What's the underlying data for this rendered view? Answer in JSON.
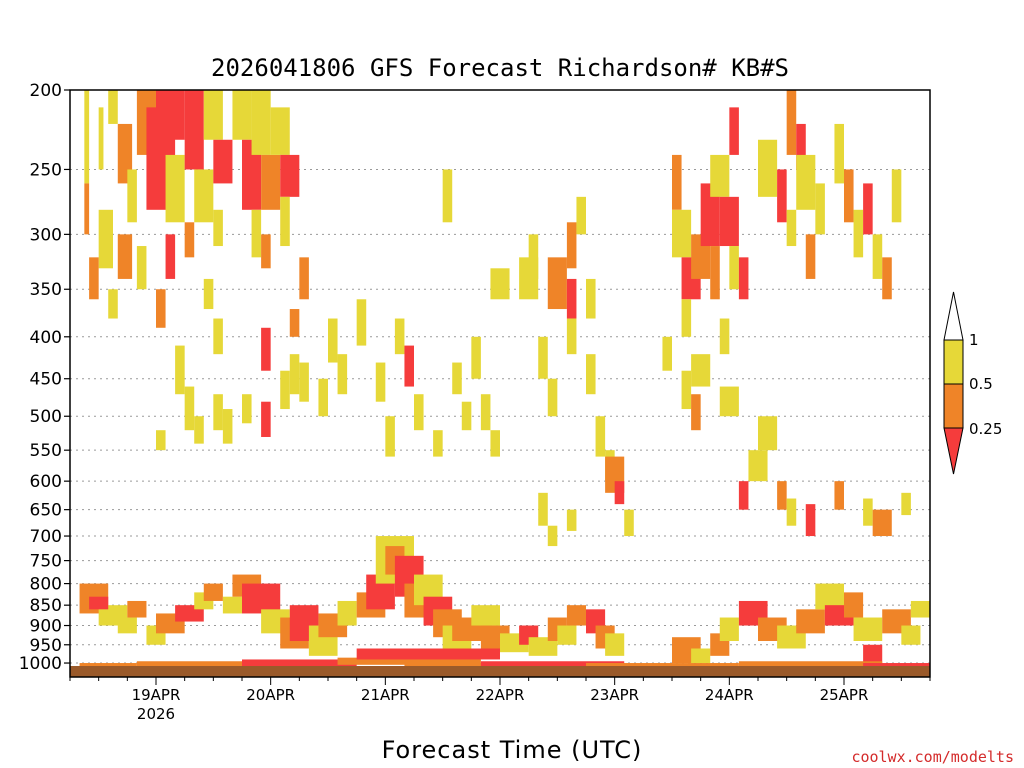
{
  "chart_data": {
    "type": "heatmap",
    "title": "2026041806 GFS Forecast Richardson# KB#S",
    "xlabel": "Forecast Time (UTC)",
    "credit": "coolwx.com/modelts",
    "y_axis": {
      "label": "",
      "scale": "log-pressure",
      "inverted": true,
      "range_hPa": [
        200,
        1040
      ],
      "ticks": [
        "200",
        "250",
        "300",
        "350",
        "400",
        "450",
        "500",
        "550",
        "600",
        "650",
        "700",
        "750",
        "800",
        "850",
        "900",
        "950",
        "1000"
      ],
      "grid": "dotted"
    },
    "x_axis": {
      "range_hours": [
        0,
        180
      ],
      "tick_labels": [
        {
          "hour": 18,
          "label": "19APR",
          "sublabel": "2026"
        },
        {
          "hour": 42,
          "label": "20APR",
          "sublabel": ""
        },
        {
          "hour": 66,
          "label": "21APR",
          "sublabel": ""
        },
        {
          "hour": 90,
          "label": "22APR",
          "sublabel": ""
        },
        {
          "hour": 114,
          "label": "23APR",
          "sublabel": ""
        },
        {
          "hour": 138,
          "label": "24APR",
          "sublabel": ""
        },
        {
          "hour": 162,
          "label": "25APR",
          "sublabel": ""
        }
      ]
    },
    "legend": {
      "placement": "right",
      "labels": [
        "1",
        "0.5",
        "0.25"
      ],
      "bins": [
        {
          "range": "0.5-1",
          "color": "#e6d838"
        },
        {
          "range": "0.25-0.5",
          "color": "#ef8428"
        },
        {
          "range": "<0.25",
          "color": "#f53c3c"
        }
      ],
      "above_color": "#ffffff"
    },
    "colors": {
      "lt025": "#f53c3c",
      "c025_05": "#ef8428",
      "c05_1": "#e6d838",
      "ground": "#9a5a2a"
    },
    "cells": [
      [
        3,
        4,
        200,
        260,
        "y"
      ],
      [
        3,
        4,
        260,
        300,
        "o"
      ],
      [
        6,
        7,
        210,
        250,
        "y"
      ],
      [
        8,
        10,
        200,
        220,
        "y"
      ],
      [
        10,
        13,
        220,
        260,
        "o"
      ],
      [
        12,
        14,
        250,
        290,
        "y"
      ],
      [
        14,
        18,
        200,
        240,
        "o"
      ],
      [
        16,
        22,
        210,
        280,
        "r"
      ],
      [
        18,
        24,
        200,
        230,
        "r"
      ],
      [
        20,
        24,
        240,
        290,
        "y"
      ],
      [
        24,
        28,
        200,
        250,
        "r"
      ],
      [
        26,
        30,
        250,
        290,
        "y"
      ],
      [
        28,
        32,
        200,
        230,
        "y"
      ],
      [
        30,
        34,
        230,
        260,
        "r"
      ],
      [
        34,
        38,
        200,
        230,
        "y"
      ],
      [
        36,
        40,
        230,
        280,
        "r"
      ],
      [
        38,
        42,
        200,
        240,
        "y"
      ],
      [
        40,
        44,
        240,
        280,
        "o"
      ],
      [
        42,
        46,
        210,
        240,
        "y"
      ],
      [
        44,
        48,
        240,
        270,
        "r"
      ],
      [
        44,
        46,
        270,
        310,
        "y"
      ],
      [
        6,
        9,
        280,
        330,
        "y"
      ],
      [
        10,
        13,
        300,
        340,
        "o"
      ],
      [
        14,
        16,
        310,
        350,
        "y"
      ],
      [
        20,
        22,
        300,
        340,
        "r"
      ],
      [
        24,
        26,
        290,
        320,
        "o"
      ],
      [
        30,
        32,
        280,
        310,
        "y"
      ],
      [
        38,
        40,
        280,
        320,
        "y"
      ],
      [
        40,
        42,
        300,
        330,
        "o"
      ],
      [
        4,
        6,
        320,
        360,
        "o"
      ],
      [
        8,
        10,
        350,
        380,
        "y"
      ],
      [
        18,
        20,
        350,
        390,
        "o"
      ],
      [
        28,
        30,
        340,
        370,
        "y"
      ],
      [
        30,
        32,
        380,
        420,
        "y"
      ],
      [
        40,
        42,
        390,
        440,
        "r"
      ],
      [
        46,
        48,
        370,
        400,
        "o"
      ],
      [
        48,
        50,
        320,
        360,
        "o"
      ],
      [
        54,
        56,
        380,
        430,
        "y"
      ],
      [
        56,
        58,
        420,
        470,
        "y"
      ],
      [
        46,
        48,
        420,
        470,
        "y"
      ],
      [
        22,
        24,
        410,
        470,
        "y"
      ],
      [
        24,
        26,
        460,
        520,
        "y"
      ],
      [
        30,
        32,
        470,
        520,
        "y"
      ],
      [
        32,
        34,
        490,
        540,
        "y"
      ],
      [
        36,
        38,
        470,
        510,
        "y"
      ],
      [
        40,
        42,
        480,
        530,
        "r"
      ],
      [
        44,
        46,
        440,
        490,
        "y"
      ],
      [
        48,
        50,
        430,
        480,
        "y"
      ],
      [
        52,
        54,
        450,
        500,
        "y"
      ],
      [
        18,
        20,
        520,
        550,
        "y"
      ],
      [
        26,
        28,
        500,
        540,
        "y"
      ],
      [
        60,
        62,
        360,
        410,
        "y"
      ],
      [
        64,
        66,
        430,
        480,
        "y"
      ],
      [
        66,
        68,
        500,
        560,
        "y"
      ],
      [
        68,
        70,
        380,
        420,
        "y"
      ],
      [
        70,
        72,
        410,
        460,
        "r"
      ],
      [
        72,
        74,
        470,
        520,
        "y"
      ],
      [
        76,
        78,
        520,
        560,
        "y"
      ],
      [
        80,
        82,
        430,
        470,
        "y"
      ],
      [
        82,
        84,
        480,
        520,
        "y"
      ],
      [
        84,
        86,
        400,
        450,
        "y"
      ],
      [
        86,
        88,
        470,
        520,
        "y"
      ],
      [
        88,
        90,
        520,
        560,
        "y"
      ],
      [
        88,
        92,
        330,
        360,
        "y"
      ],
      [
        94,
        98,
        320,
        360,
        "y"
      ],
      [
        100,
        104,
        320,
        370,
        "o"
      ],
      [
        104,
        106,
        340,
        380,
        "r"
      ],
      [
        96,
        98,
        300,
        340,
        "y"
      ],
      [
        104,
        106,
        290,
        330,
        "o"
      ],
      [
        108,
        110,
        340,
        380,
        "y"
      ],
      [
        106,
        108,
        270,
        300,
        "y"
      ],
      [
        98,
        100,
        400,
        450,
        "y"
      ],
      [
        100,
        102,
        450,
        500,
        "y"
      ],
      [
        104,
        106,
        380,
        420,
        "y"
      ],
      [
        108,
        110,
        420,
        470,
        "y"
      ],
      [
        78,
        80,
        250,
        290,
        "y"
      ],
      [
        110,
        112,
        500,
        560,
        "y"
      ],
      [
        112,
        114,
        550,
        600,
        "y"
      ],
      [
        112,
        116,
        560,
        620,
        "o"
      ],
      [
        114,
        116,
        600,
        640,
        "r"
      ],
      [
        116,
        118,
        650,
        700,
        "y"
      ],
      [
        98,
        100,
        620,
        680,
        "y"
      ],
      [
        104,
        106,
        650,
        690,
        "y"
      ],
      [
        100,
        102,
        680,
        720,
        "y"
      ],
      [
        126,
        128,
        240,
        280,
        "o"
      ],
      [
        126,
        130,
        280,
        320,
        "y"
      ],
      [
        128,
        132,
        320,
        360,
        "r"
      ],
      [
        128,
        130,
        360,
        400,
        "y"
      ],
      [
        130,
        134,
        300,
        340,
        "o"
      ],
      [
        132,
        136,
        260,
        310,
        "r"
      ],
      [
        134,
        136,
        310,
        360,
        "o"
      ],
      [
        134,
        138,
        240,
        270,
        "y"
      ],
      [
        136,
        140,
        270,
        310,
        "r"
      ],
      [
        138,
        140,
        310,
        350,
        "y"
      ],
      [
        138,
        140,
        210,
        240,
        "r"
      ],
      [
        136,
        138,
        380,
        420,
        "y"
      ],
      [
        140,
        142,
        320,
        360,
        "r"
      ],
      [
        124,
        126,
        400,
        440,
        "y"
      ],
      [
        128,
        130,
        440,
        490,
        "y"
      ],
      [
        130,
        132,
        470,
        520,
        "o"
      ],
      [
        130,
        134,
        420,
        460,
        "y"
      ],
      [
        136,
        140,
        460,
        500,
        "y"
      ],
      [
        144,
        148,
        230,
        270,
        "y"
      ],
      [
        148,
        150,
        250,
        290,
        "r"
      ],
      [
        150,
        152,
        200,
        240,
        "o"
      ],
      [
        150,
        152,
        280,
        310,
        "y"
      ],
      [
        152,
        154,
        220,
        250,
        "r"
      ],
      [
        152,
        156,
        240,
        280,
        "y"
      ],
      [
        154,
        156,
        300,
        340,
        "o"
      ],
      [
        156,
        158,
        260,
        300,
        "y"
      ],
      [
        160,
        162,
        220,
        260,
        "y"
      ],
      [
        162,
        164,
        250,
        290,
        "o"
      ],
      [
        164,
        166,
        280,
        320,
        "y"
      ],
      [
        166,
        168,
        260,
        300,
        "r"
      ],
      [
        168,
        170,
        300,
        340,
        "y"
      ],
      [
        170,
        172,
        320,
        360,
        "o"
      ],
      [
        172,
        174,
        250,
        290,
        "y"
      ],
      [
        140,
        142,
        600,
        650,
        "r"
      ],
      [
        142,
        146,
        550,
        600,
        "y"
      ],
      [
        144,
        148,
        500,
        550,
        "y"
      ],
      [
        148,
        150,
        600,
        650,
        "o"
      ],
      [
        150,
        152,
        630,
        680,
        "y"
      ],
      [
        154,
        156,
        640,
        700,
        "r"
      ],
      [
        160,
        162,
        600,
        650,
        "o"
      ],
      [
        166,
        168,
        630,
        680,
        "y"
      ],
      [
        168,
        172,
        650,
        700,
        "o"
      ],
      [
        174,
        176,
        620,
        660,
        "y"
      ],
      [
        2,
        8,
        800,
        870,
        "o"
      ],
      [
        6,
        12,
        850,
        900,
        "y"
      ],
      [
        4,
        8,
        830,
        860,
        "r"
      ],
      [
        10,
        14,
        880,
        920,
        "y"
      ],
      [
        12,
        16,
        840,
        880,
        "o"
      ],
      [
        16,
        20,
        900,
        950,
        "y"
      ],
      [
        18,
        24,
        870,
        920,
        "o"
      ],
      [
        22,
        28,
        850,
        890,
        "r"
      ],
      [
        26,
        30,
        820,
        860,
        "y"
      ],
      [
        28,
        32,
        800,
        840,
        "o"
      ],
      [
        32,
        36,
        830,
        870,
        "y"
      ],
      [
        34,
        40,
        780,
        830,
        "o"
      ],
      [
        36,
        44,
        800,
        870,
        "r"
      ],
      [
        40,
        46,
        860,
        920,
        "y"
      ],
      [
        44,
        50,
        880,
        960,
        "o"
      ],
      [
        46,
        52,
        850,
        940,
        "r"
      ],
      [
        50,
        56,
        900,
        980,
        "y"
      ],
      [
        52,
        58,
        870,
        930,
        "o"
      ],
      [
        56,
        60,
        840,
        900,
        "y"
      ],
      [
        60,
        66,
        820,
        880,
        "o"
      ],
      [
        62,
        68,
        780,
        860,
        "r"
      ],
      [
        64,
        72,
        700,
        800,
        "y"
      ],
      [
        66,
        70,
        720,
        780,
        "o"
      ],
      [
        68,
        74,
        740,
        830,
        "r"
      ],
      [
        70,
        76,
        800,
        880,
        "o"
      ],
      [
        72,
        78,
        780,
        850,
        "y"
      ],
      [
        74,
        80,
        830,
        900,
        "r"
      ],
      [
        76,
        82,
        860,
        930,
        "o"
      ],
      [
        78,
        84,
        900,
        960,
        "y"
      ],
      [
        80,
        88,
        880,
        940,
        "o"
      ],
      [
        84,
        90,
        850,
        900,
        "y"
      ],
      [
        86,
        92,
        900,
        960,
        "o"
      ],
      [
        90,
        96,
        920,
        970,
        "y"
      ],
      [
        94,
        98,
        900,
        950,
        "r"
      ],
      [
        96,
        102,
        930,
        980,
        "y"
      ],
      [
        100,
        104,
        880,
        940,
        "o"
      ],
      [
        102,
        106,
        900,
        950,
        "y"
      ],
      [
        104,
        108,
        850,
        900,
        "o"
      ],
      [
        108,
        112,
        860,
        920,
        "r"
      ],
      [
        110,
        114,
        900,
        960,
        "o"
      ],
      [
        112,
        116,
        920,
        980,
        "y"
      ],
      [
        126,
        132,
        930,
        1000,
        "o"
      ],
      [
        130,
        134,
        960,
        1000,
        "y"
      ],
      [
        134,
        138,
        920,
        980,
        "o"
      ],
      [
        136,
        140,
        880,
        940,
        "y"
      ],
      [
        140,
        146,
        840,
        900,
        "r"
      ],
      [
        144,
        150,
        880,
        940,
        "o"
      ],
      [
        148,
        154,
        900,
        960,
        "y"
      ],
      [
        152,
        158,
        860,
        920,
        "o"
      ],
      [
        156,
        162,
        800,
        860,
        "y"
      ],
      [
        158,
        164,
        850,
        900,
        "r"
      ],
      [
        162,
        166,
        820,
        880,
        "o"
      ],
      [
        164,
        170,
        880,
        940,
        "y"
      ],
      [
        166,
        170,
        950,
        1000,
        "r"
      ],
      [
        170,
        176,
        860,
        920,
        "o"
      ],
      [
        174,
        178,
        900,
        950,
        "y"
      ],
      [
        176,
        180,
        840,
        880,
        "y"
      ],
      [
        2,
        14,
        1000,
        1015,
        "o"
      ],
      [
        14,
        40,
        995,
        1010,
        "o"
      ],
      [
        36,
        60,
        990,
        1010,
        "r"
      ],
      [
        56,
        86,
        985,
        1005,
        "o"
      ],
      [
        60,
        90,
        960,
        990,
        "r"
      ],
      [
        70,
        96,
        1000,
        1015,
        "o"
      ],
      [
        86,
        116,
        995,
        1010,
        "r"
      ],
      [
        108,
        140,
        1000,
        1012,
        "o"
      ],
      [
        140,
        170,
        995,
        1010,
        "o"
      ],
      [
        166,
        180,
        1000,
        1012,
        "r"
      ]
    ]
  }
}
